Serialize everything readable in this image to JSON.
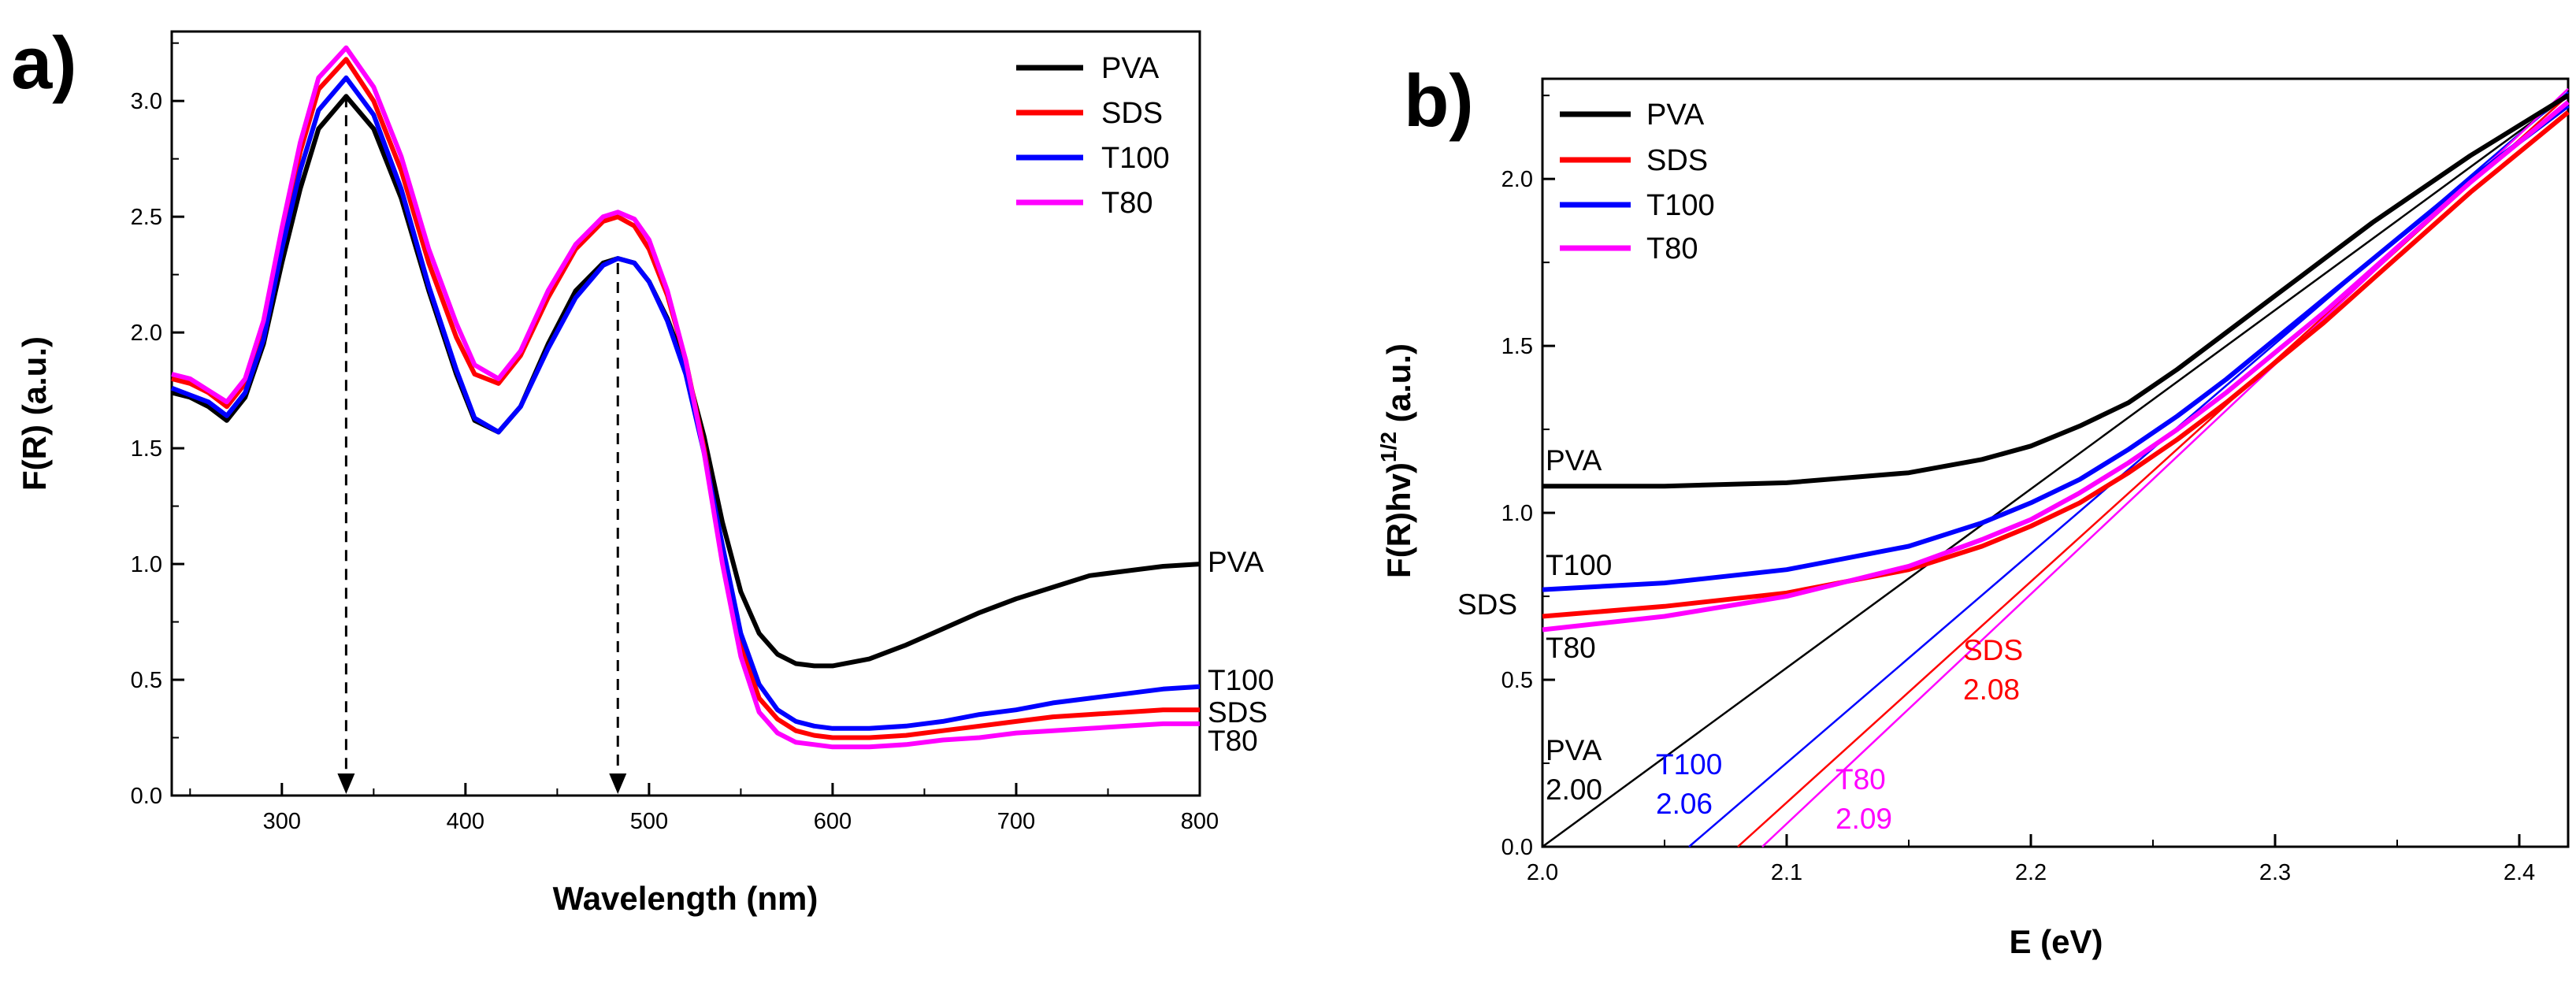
{
  "chart_data": [
    {
      "panel_label": "a)",
      "type": "line",
      "xlabel": "Wavelength (nm)",
      "ylabel": "F(R) (a.u.)",
      "xlim": [
        240,
        800
      ],
      "ylim": [
        0,
        3.3
      ],
      "xticks": [
        300,
        400,
        500,
        600,
        700,
        800
      ],
      "yticks": [
        0.0,
        0.5,
        1.0,
        1.5,
        2.0,
        2.5,
        3.0
      ],
      "legend": {
        "placement": "top-right",
        "entries": [
          "PVA",
          "SDS",
          "T100",
          "T80"
        ]
      },
      "annotations": {
        "arrows": [
          {
            "x": 335,
            "from_y": 3.02,
            "to_y": 0.0
          },
          {
            "x": 483,
            "from_y": 2.3,
            "to_y": 0.0
          }
        ],
        "end_labels": [
          {
            "text": "PVA",
            "series": "PVA"
          },
          {
            "text": "T100",
            "series": "T100"
          },
          {
            "text": "SDS",
            "series": "SDS"
          },
          {
            "text": "T80",
            "series": "T80"
          }
        ]
      },
      "series": [
        {
          "name": "PVA",
          "color": "#000000",
          "x": [
            240,
            250,
            260,
            270,
            280,
            290,
            300,
            310,
            320,
            335,
            350,
            365,
            380,
            395,
            405,
            418,
            430,
            445,
            460,
            475,
            483,
            492,
            500,
            510,
            520,
            530,
            540,
            550,
            560,
            570,
            580,
            590,
            600,
            620,
            640,
            660,
            680,
            700,
            720,
            740,
            760,
            780,
            800
          ],
          "y": [
            1.74,
            1.72,
            1.68,
            1.62,
            1.72,
            1.95,
            2.3,
            2.62,
            2.88,
            3.02,
            2.88,
            2.58,
            2.18,
            1.82,
            1.62,
            1.57,
            1.68,
            1.95,
            2.18,
            2.3,
            2.32,
            2.3,
            2.22,
            2.06,
            1.85,
            1.55,
            1.18,
            0.88,
            0.7,
            0.61,
            0.57,
            0.56,
            0.56,
            0.59,
            0.65,
            0.72,
            0.79,
            0.85,
            0.9,
            0.95,
            0.97,
            0.99,
            1.0
          ]
        },
        {
          "name": "SDS",
          "color": "#ff0000",
          "x": [
            240,
            250,
            260,
            270,
            280,
            290,
            300,
            310,
            320,
            335,
            350,
            365,
            380,
            395,
            405,
            418,
            430,
            445,
            460,
            475,
            483,
            492,
            500,
            510,
            520,
            530,
            540,
            550,
            560,
            570,
            580,
            590,
            600,
            620,
            640,
            660,
            680,
            700,
            720,
            740,
            760,
            780,
            800
          ],
          "y": [
            1.8,
            1.78,
            1.74,
            1.68,
            1.78,
            2.02,
            2.42,
            2.78,
            3.05,
            3.18,
            3.0,
            2.7,
            2.3,
            1.98,
            1.82,
            1.78,
            1.9,
            2.15,
            2.36,
            2.48,
            2.5,
            2.46,
            2.36,
            2.16,
            1.88,
            1.5,
            1.05,
            0.65,
            0.42,
            0.33,
            0.28,
            0.26,
            0.25,
            0.25,
            0.26,
            0.28,
            0.3,
            0.32,
            0.34,
            0.35,
            0.36,
            0.37,
            0.37
          ]
        },
        {
          "name": "T100",
          "color": "#0000ff",
          "x": [
            240,
            250,
            260,
            270,
            280,
            290,
            300,
            310,
            320,
            335,
            350,
            365,
            380,
            395,
            405,
            418,
            430,
            445,
            460,
            475,
            483,
            492,
            500,
            510,
            520,
            530,
            540,
            550,
            560,
            570,
            580,
            590,
            600,
            620,
            640,
            660,
            680,
            700,
            720,
            740,
            760,
            780,
            800
          ],
          "y": [
            1.76,
            1.73,
            1.7,
            1.64,
            1.74,
            1.97,
            2.36,
            2.7,
            2.96,
            3.1,
            2.94,
            2.62,
            2.2,
            1.84,
            1.63,
            1.57,
            1.68,
            1.93,
            2.15,
            2.29,
            2.32,
            2.3,
            2.22,
            2.05,
            1.82,
            1.48,
            1.08,
            0.7,
            0.48,
            0.37,
            0.32,
            0.3,
            0.29,
            0.29,
            0.3,
            0.32,
            0.35,
            0.37,
            0.4,
            0.42,
            0.44,
            0.46,
            0.47
          ]
        },
        {
          "name": "T80",
          "color": "#ff00ff",
          "x": [
            240,
            250,
            260,
            270,
            280,
            290,
            300,
            310,
            320,
            335,
            350,
            365,
            380,
            395,
            405,
            418,
            430,
            445,
            460,
            475,
            483,
            492,
            500,
            510,
            520,
            530,
            540,
            550,
            560,
            570,
            580,
            590,
            600,
            620,
            640,
            660,
            680,
            700,
            720,
            740,
            760,
            780,
            800
          ],
          "y": [
            1.82,
            1.8,
            1.75,
            1.7,
            1.8,
            2.05,
            2.45,
            2.82,
            3.1,
            3.23,
            3.06,
            2.76,
            2.36,
            2.04,
            1.86,
            1.8,
            1.92,
            2.18,
            2.38,
            2.5,
            2.52,
            2.49,
            2.4,
            2.18,
            1.88,
            1.48,
            1.0,
            0.6,
            0.36,
            0.27,
            0.23,
            0.22,
            0.21,
            0.21,
            0.22,
            0.24,
            0.25,
            0.27,
            0.28,
            0.29,
            0.3,
            0.31,
            0.31
          ]
        }
      ]
    },
    {
      "panel_label": "b)",
      "type": "line",
      "xlabel": "E (eV)",
      "ylabel_main": "F(R)hv)",
      "ylabel_sup": "1/2",
      "ylabel_tail": " (a.u.)",
      "xlim": [
        2.0,
        2.42
      ],
      "ylim": [
        0,
        2.3
      ],
      "xticks": [
        2.0,
        2.1,
        2.2,
        2.3,
        2.4
      ],
      "yticks": [
        0.0,
        0.5,
        1.0,
        1.5,
        2.0
      ],
      "legend": {
        "placement": "top-left",
        "entries": [
          "PVA",
          "SDS",
          "T100",
          "T80"
        ]
      },
      "series": [
        {
          "name": "PVA",
          "color": "#000000",
          "x": [
            2.0,
            2.05,
            2.1,
            2.15,
            2.18,
            2.2,
            2.22,
            2.24,
            2.26,
            2.28,
            2.3,
            2.32,
            2.34,
            2.36,
            2.38,
            2.4,
            2.42
          ],
          "y": [
            1.08,
            1.08,
            1.09,
            1.12,
            1.16,
            1.2,
            1.26,
            1.33,
            1.43,
            1.54,
            1.65,
            1.76,
            1.87,
            1.97,
            2.07,
            2.16,
            2.25
          ]
        },
        {
          "name": "SDS",
          "color": "#ff0000",
          "x": [
            2.0,
            2.05,
            2.1,
            2.15,
            2.18,
            2.2,
            2.22,
            2.24,
            2.26,
            2.28,
            2.3,
            2.32,
            2.34,
            2.36,
            2.38,
            2.4,
            2.42
          ],
          "y": [
            0.69,
            0.72,
            0.76,
            0.83,
            0.9,
            0.96,
            1.03,
            1.12,
            1.22,
            1.33,
            1.45,
            1.57,
            1.7,
            1.83,
            1.96,
            2.08,
            2.2
          ]
        },
        {
          "name": "T100",
          "color": "#0000ff",
          "x": [
            2.0,
            2.05,
            2.1,
            2.15,
            2.18,
            2.2,
            2.22,
            2.24,
            2.26,
            2.28,
            2.3,
            2.32,
            2.34,
            2.36,
            2.38,
            2.4,
            2.42
          ],
          "y": [
            0.77,
            0.79,
            0.83,
            0.9,
            0.97,
            1.03,
            1.1,
            1.19,
            1.29,
            1.4,
            1.52,
            1.64,
            1.76,
            1.88,
            2.0,
            2.11,
            2.22
          ]
        },
        {
          "name": "T80",
          "color": "#ff00ff",
          "x": [
            2.0,
            2.05,
            2.1,
            2.15,
            2.18,
            2.2,
            2.22,
            2.24,
            2.26,
            2.28,
            2.3,
            2.32,
            2.34,
            2.36,
            2.38,
            2.4,
            2.42
          ],
          "y": [
            0.65,
            0.69,
            0.75,
            0.84,
            0.92,
            0.98,
            1.06,
            1.15,
            1.25,
            1.36,
            1.48,
            1.6,
            1.73,
            1.86,
            1.99,
            2.11,
            2.23
          ]
        }
      ],
      "tangent_lines": [
        {
          "name": "PVA",
          "color": "#000000",
          "x": [
            2.0,
            2.42
          ],
          "y": [
            0.0,
            2.25
          ]
        },
        {
          "name": "T100",
          "color": "#0000ff",
          "x": [
            2.06,
            2.42
          ],
          "y": [
            0.0,
            2.26
          ]
        },
        {
          "name": "SDS",
          "color": "#ff0000",
          "x": [
            2.08,
            2.42
          ],
          "y": [
            0.0,
            2.25
          ]
        },
        {
          "name": "T80",
          "color": "#ff00ff",
          "x": [
            2.09,
            2.42
          ],
          "y": [
            0.0,
            2.27
          ]
        }
      ],
      "curve_labels": [
        "PVA",
        "T100",
        "SDS",
        "T80"
      ],
      "bandgap_labels": [
        {
          "name": "PVA",
          "value": "2.00",
          "color": "#000000"
        },
        {
          "name": "T100",
          "value": "2.06",
          "color": "#0000ff"
        },
        {
          "name": "SDS",
          "value": "2.08",
          "color": "#ff0000"
        },
        {
          "name": "T80",
          "value": "2.09",
          "color": "#ff00ff"
        }
      ]
    }
  ]
}
